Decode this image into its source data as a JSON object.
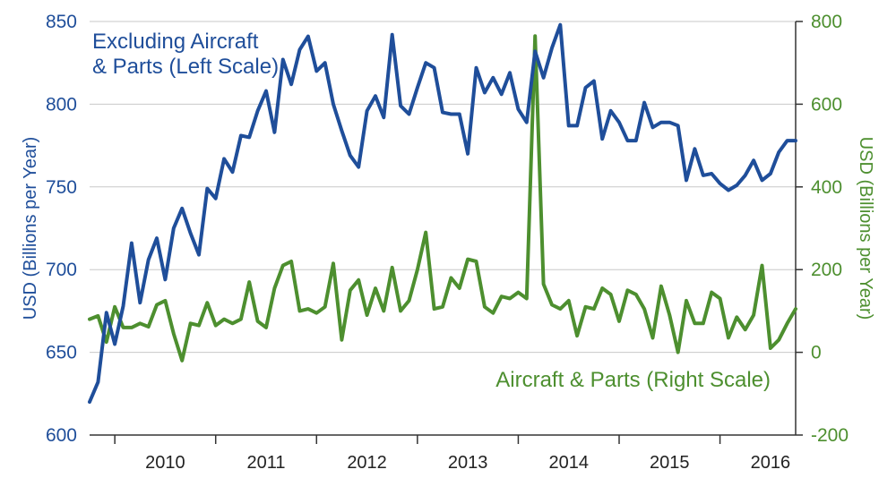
{
  "chart_data": {
    "type": "line",
    "colors": {
      "ex_aircraft": "#1f4e9a",
      "aircraft": "#4d8f2f",
      "grid": "#c8c8c8",
      "axis": "#333333"
    },
    "grid": true,
    "x_tick_labels": [
      "2010",
      "2011",
      "2012",
      "2013",
      "2014",
      "2015",
      "2016"
    ],
    "x_range": [
      "2009-10",
      "2016-10"
    ],
    "left_axis": {
      "label": "USD (Billions per Year)",
      "range": [
        600,
        850
      ],
      "ticks": [
        "600",
        "650",
        "700",
        "750",
        "800",
        "850"
      ]
    },
    "right_axis": {
      "label": "USD (Billions per Year)",
      "range": [
        -200,
        800
      ],
      "ticks": [
        "-200",
        "0",
        "200",
        "400",
        "600",
        "800"
      ]
    },
    "series": [
      {
        "name": "Excluding Aircraft & Parts (Left Scale)",
        "label_lines": [
          "Excluding Aircraft",
          "& Parts (Left Scale)"
        ],
        "axis": "left",
        "x": [
          "2009-10",
          "2009-11",
          "2009-12",
          "2010-01",
          "2010-02",
          "2010-03",
          "2010-04",
          "2010-05",
          "2010-06",
          "2010-07",
          "2010-08",
          "2010-09",
          "2010-10",
          "2010-11",
          "2010-12",
          "2011-01",
          "2011-02",
          "2011-03",
          "2011-04",
          "2011-05",
          "2011-06",
          "2011-07",
          "2011-08",
          "2011-09",
          "2011-10",
          "2011-11",
          "2011-12",
          "2012-01",
          "2012-02",
          "2012-03",
          "2012-04",
          "2012-05",
          "2012-06",
          "2012-07",
          "2012-08",
          "2012-09",
          "2012-10",
          "2012-11",
          "2012-12",
          "2013-01",
          "2013-02",
          "2013-03",
          "2013-04",
          "2013-05",
          "2013-06",
          "2013-07",
          "2013-08",
          "2013-09",
          "2013-10",
          "2013-11",
          "2013-12",
          "2014-01",
          "2014-02",
          "2014-03",
          "2014-04",
          "2014-05",
          "2014-06",
          "2014-07",
          "2014-08",
          "2014-09",
          "2014-10",
          "2014-11",
          "2014-12",
          "2015-01",
          "2015-02",
          "2015-03",
          "2015-04",
          "2015-05",
          "2015-06",
          "2015-07",
          "2015-08",
          "2015-09",
          "2015-10",
          "2015-11",
          "2015-12",
          "2016-01",
          "2016-02",
          "2016-03",
          "2016-04",
          "2016-05",
          "2016-06",
          "2016-07",
          "2016-08",
          "2016-09",
          "2016-10"
        ],
        "values": [
          620,
          632,
          674,
          655,
          678,
          716,
          680,
          706,
          719,
          694,
          725,
          737,
          722,
          709,
          749,
          743,
          767,
          759,
          781,
          780,
          796,
          808,
          783,
          827,
          812,
          833,
          841,
          820,
          825,
          800,
          784,
          769,
          762,
          796,
          805,
          792,
          842,
          799,
          794,
          810,
          825,
          822,
          795,
          794,
          794,
          770,
          822,
          807,
          816,
          806,
          819,
          797,
          789,
          832,
          816,
          834,
          848,
          787,
          787,
          810,
          814,
          779,
          796,
          789,
          778,
          778,
          801,
          786,
          789,
          789,
          787,
          754,
          773,
          757,
          758,
          752,
          748,
          751,
          757,
          766,
          754,
          758,
          771,
          778,
          778
        ]
      },
      {
        "name": "Aircraft & Parts (Right Scale)",
        "axis": "right",
        "x": [
          "2009-10",
          "2009-11",
          "2009-12",
          "2010-01",
          "2010-02",
          "2010-03",
          "2010-04",
          "2010-05",
          "2010-06",
          "2010-07",
          "2010-08",
          "2010-09",
          "2010-10",
          "2010-11",
          "2010-12",
          "2011-01",
          "2011-02",
          "2011-03",
          "2011-04",
          "2011-05",
          "2011-06",
          "2011-07",
          "2011-08",
          "2011-09",
          "2011-10",
          "2011-11",
          "2011-12",
          "2012-01",
          "2012-02",
          "2012-03",
          "2012-04",
          "2012-05",
          "2012-06",
          "2012-07",
          "2012-08",
          "2012-09",
          "2012-10",
          "2012-11",
          "2012-12",
          "2013-01",
          "2013-02",
          "2013-03",
          "2013-04",
          "2013-05",
          "2013-06",
          "2013-07",
          "2013-08",
          "2013-09",
          "2013-10",
          "2013-11",
          "2013-12",
          "2014-01",
          "2014-02",
          "2014-03",
          "2014-04",
          "2014-05",
          "2014-06",
          "2014-07",
          "2014-08",
          "2014-09",
          "2014-10",
          "2014-11",
          "2014-12",
          "2015-01",
          "2015-02",
          "2015-03",
          "2015-04",
          "2015-05",
          "2015-06",
          "2015-07",
          "2015-08",
          "2015-09",
          "2015-10",
          "2015-11",
          "2015-12",
          "2016-01",
          "2016-02",
          "2016-03",
          "2016-04",
          "2016-05",
          "2016-06",
          "2016-07",
          "2016-08",
          "2016-09",
          "2016-10"
        ],
        "values": [
          80,
          88,
          25,
          110,
          60,
          60,
          70,
          62,
          115,
          125,
          45,
          -20,
          70,
          65,
          120,
          65,
          80,
          70,
          80,
          170,
          75,
          60,
          155,
          210,
          220,
          100,
          105,
          95,
          110,
          215,
          30,
          150,
          175,
          90,
          155,
          100,
          205,
          100,
          125,
          200,
          290,
          105,
          110,
          180,
          155,
          225,
          220,
          110,
          95,
          135,
          130,
          145,
          130,
          765,
          165,
          115,
          105,
          125,
          40,
          110,
          105,
          155,
          140,
          75,
          150,
          140,
          105,
          35,
          160,
          90,
          0,
          125,
          70,
          70,
          145,
          130,
          35,
          85,
          55,
          90,
          210,
          10,
          30,
          70,
          105
        ]
      }
    ]
  }
}
